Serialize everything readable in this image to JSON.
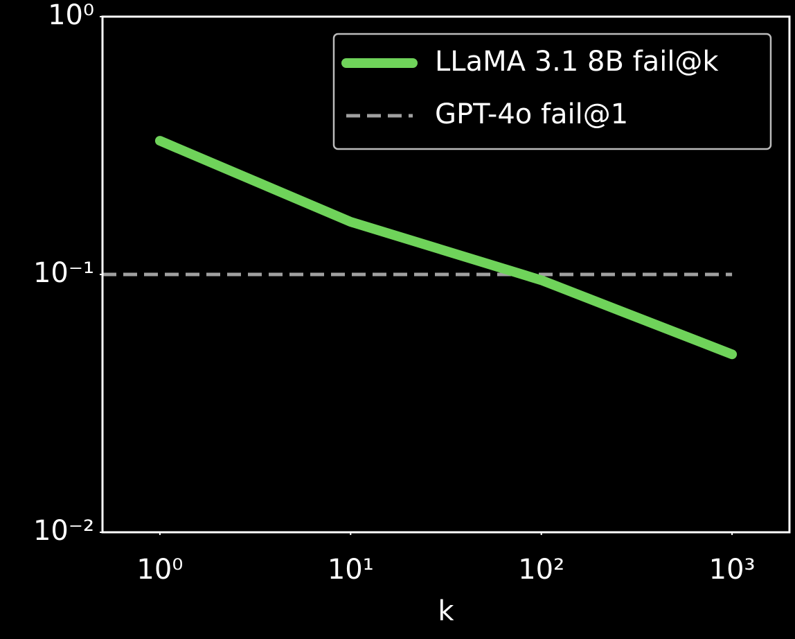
{
  "chart_data": {
    "type": "line",
    "xlabel": "k",
    "xscale": "log",
    "yscale": "log",
    "xlim": [
      0.5,
      2000
    ],
    "ylim": [
      0.01,
      1
    ],
    "xticks": [
      {
        "value": 1,
        "label": "10⁰"
      },
      {
        "value": 10,
        "label": "10¹"
      },
      {
        "value": 100,
        "label": "10²"
      },
      {
        "value": 1000,
        "label": "10³"
      }
    ],
    "yticks": [
      {
        "value": 0.01,
        "label": "10⁻²"
      },
      {
        "value": 0.1,
        "label": "10⁻¹"
      },
      {
        "value": 1,
        "label": "10⁰"
      }
    ],
    "grid": false,
    "legend": "upper right",
    "series": [
      {
        "name": "LLaMA 3.1 8B fail@k",
        "color": "#6fd35a",
        "style": "solid",
        "x": [
          1,
          10,
          100,
          1000
        ],
        "values": [
          0.33,
          0.16,
          0.095,
          0.049
        ]
      },
      {
        "name": "GPT-4o fail@1",
        "color": "#a0a0a0",
        "style": "dashed",
        "x": [
          0.5,
          1000
        ],
        "values": [
          0.1,
          0.1
        ]
      }
    ]
  }
}
